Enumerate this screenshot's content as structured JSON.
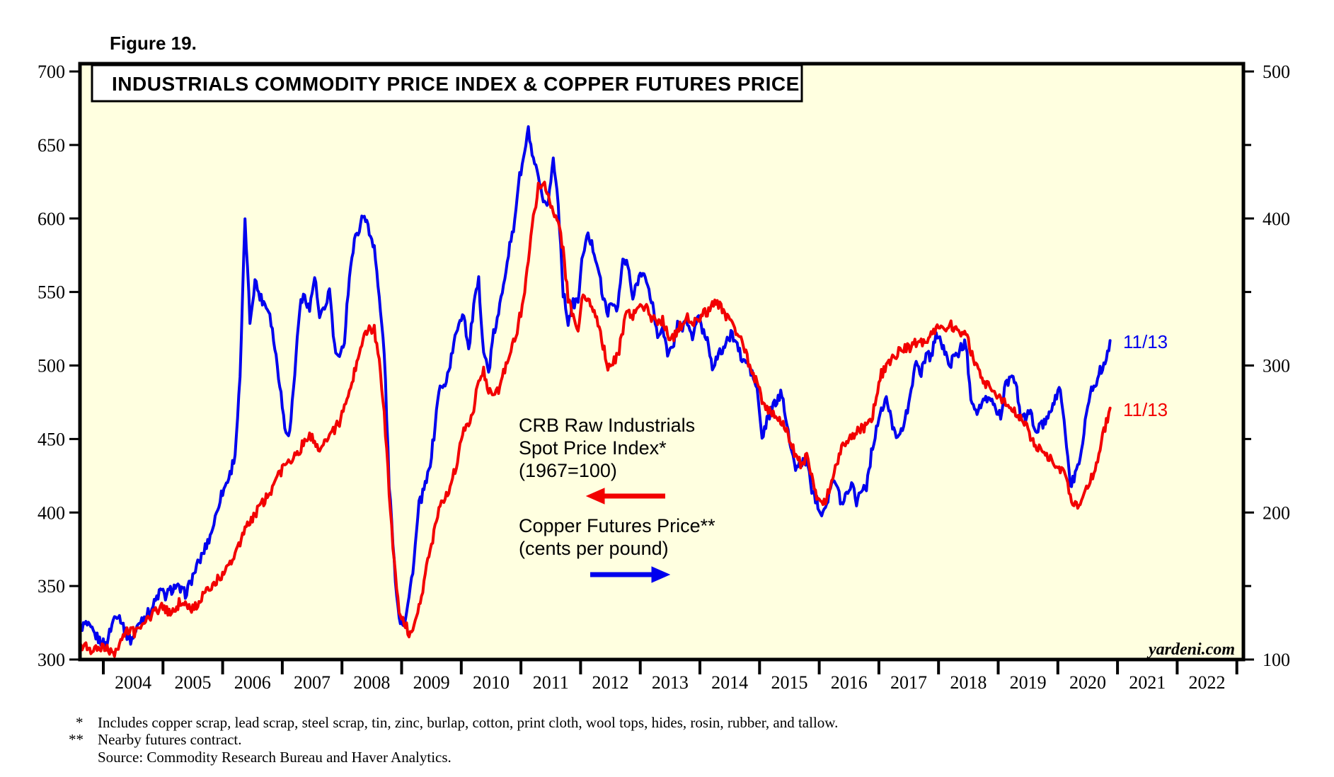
{
  "figure_label": "Figure 19.",
  "title": "INDUSTRIALS COMMODITY PRICE INDEX & COPPER FUTURES PRICE",
  "watermark": "yardeni.com",
  "annotations": {
    "crb_line1": "CRB Raw Industrials",
    "crb_line2": "Spot Price Index*",
    "crb_line3": "(1967=100)",
    "copper_line1": "Copper Futures Price**",
    "copper_line2": "(cents per pound)",
    "crb_end_label": "11/13",
    "copper_end_label": "11/13"
  },
  "footnotes": [
    {
      "marker": "*",
      "text": "Includes copper scrap, lead scrap, steel scrap, tin, zinc, burlap, cotton, print cloth, wool tops, hides, rosin, rubber, and tallow."
    },
    {
      "marker": "**",
      "text": "Nearby futures contract."
    },
    {
      "marker": "",
      "text": "Source: Commodity Research Bureau and Haver Analytics."
    }
  ],
  "colors": {
    "crb": "#f20000",
    "copper": "#0000ee",
    "plot_bg": "#ffffe0",
    "frame": "#000000",
    "text": "#000000"
  },
  "chart_data": {
    "type": "line",
    "title": "INDUSTRIALS COMMODITY PRICE INDEX & COPPER FUTURES PRICE",
    "x_axis_years": [
      "2004",
      "2005",
      "2006",
      "2007",
      "2008",
      "2009",
      "2010",
      "2011",
      "2012",
      "2013",
      "2014",
      "2015",
      "2016",
      "2017",
      "2018",
      "2019",
      "2020",
      "2021",
      "2022"
    ],
    "left_axis": {
      "title": "CRB Raw Industrials Spot Price Index (1967=100)",
      "range": [
        300,
        700
      ],
      "tick_step": 50,
      "ticks": [
        700,
        650,
        600,
        550,
        500,
        450,
        400,
        350,
        300
      ]
    },
    "right_axis": {
      "title": "Copper Futures Price (cents per pound)",
      "range": [
        100,
        500
      ],
      "label_ticks": [
        500,
        400,
        300,
        200,
        100
      ],
      "minor_ticks": [
        450,
        350,
        250,
        150
      ]
    },
    "last_observation": "11/13",
    "series": [
      {
        "name": "CRB Raw Industrials Spot Price Index (1967=100)",
        "axis": "left",
        "color": "#f20000",
        "x_monthly_start": "2004-01",
        "x_monthly_end": "2020-11",
        "values_aug_dec_2003": [
          310,
          309,
          307,
          306,
          307
        ],
        "values_monthly": [
          308,
          304,
          306,
          312,
          318,
          320,
          318,
          322,
          326,
          330,
          333,
          336,
          334,
          331,
          335,
          339,
          337,
          334,
          336,
          340,
          345,
          349,
          352,
          356,
          360,
          366,
          372,
          380,
          388,
          394,
          399,
          404,
          408,
          414,
          420,
          426,
          432,
          436,
          440,
          443,
          449,
          452,
          448,
          444,
          448,
          452,
          456,
          462,
          470,
          481,
          495,
          510,
          520,
          526,
          524,
          505,
          468,
          415,
          365,
          335,
          325,
          318,
          324,
          336,
          352,
          370,
          386,
          400,
          410,
          416,
          426,
          440,
          455,
          460,
          472,
          492,
          496,
          482,
          478,
          484,
          494,
          504,
          515,
          528,
          545,
          572,
          600,
          622,
          626,
          614,
          606,
          600,
          578,
          545,
          532,
          526,
          548,
          544,
          538,
          528,
          514,
          498,
          502,
          506,
          524,
          538,
          534,
          540,
          542,
          537,
          532,
          528,
          530,
          522,
          518,
          524,
          529,
          534,
          529,
          532,
          534,
          537,
          540,
          543,
          538,
          532,
          528,
          522,
          515,
          505,
          497,
          487,
          477,
          470,
          467,
          464,
          461,
          454,
          445,
          438,
          432,
          439,
          424,
          412,
          405,
          410,
          420,
          432,
          444,
          450,
          452,
          455,
          457,
          458,
          462,
          478,
          494,
          500,
          505,
          508,
          510,
          512,
          513,
          515,
          516,
          518,
          520,
          524,
          526,
          527,
          527,
          525,
          523,
          521,
          510,
          500,
          494,
          488,
          486,
          482,
          478,
          476,
          472,
          468,
          464,
          461,
          452,
          446,
          442,
          438,
          437,
          434,
          430,
          424,
          412,
          404,
          408,
          415,
          422,
          430,
          445,
          458,
          471
        ]
      },
      {
        "name": "Copper Futures Price (cents per pound)",
        "axis": "right",
        "color": "#0000ee",
        "x_monthly_start": "2004-01",
        "x_monthly_end": "2020-11",
        "values_aug_dec_2003": [
          122,
          124,
          120,
          116,
          112
        ],
        "values_monthly": [
          110,
          121,
          132,
          128,
          118,
          113,
          119,
          127,
          130,
          133,
          140,
          147,
          143,
          147,
          150,
          147,
          145,
          152,
          161,
          168,
          176,
          184,
          196,
          210,
          218,
          226,
          240,
          290,
          400,
          330,
          358,
          347,
          342,
          336,
          312,
          288,
          258,
          254,
          295,
          340,
          348,
          338,
          361,
          332,
          338,
          352,
          312,
          303,
          318,
          362,
          384,
          394,
          404,
          390,
          382,
          345,
          310,
          220,
          165,
          128,
          125,
          142,
          168,
          205,
          215,
          228,
          252,
          284,
          285,
          297,
          314,
          330,
          336,
          310,
          340,
          357,
          310,
          295,
          321,
          334,
          357,
          377,
          392,
          424,
          440,
          460,
          438,
          428,
          408,
          412,
          440,
          412,
          350,
          330,
          342,
          344,
          378,
          388,
          380,
          368,
          345,
          337,
          342,
          340,
          372,
          368,
          345,
          358,
          366,
          352,
          342,
          318,
          328,
          306,
          312,
          328,
          326,
          330,
          318,
          334,
          324,
          318,
          300,
          305,
          311,
          316,
          322,
          314,
          303,
          302,
          294,
          284,
          250,
          262,
          271,
          276,
          281,
          262,
          238,
          230,
          234,
          236,
          216,
          208,
          200,
          207,
          221,
          218,
          206,
          213,
          221,
          208,
          216,
          218,
          240,
          258,
          268,
          278,
          262,
          254,
          254,
          266,
          286,
          300,
          296,
          308,
          306,
          322,
          316,
          306,
          302,
          306,
          312,
          315,
          280,
          268,
          272,
          276,
          278,
          270,
          266,
          288,
          290,
          289,
          266,
          264,
          268,
          256,
          258,
          262,
          266,
          278,
          285,
          255,
          218,
          225,
          238,
          262,
          281,
          288,
          296,
          302,
          317
        ]
      }
    ]
  }
}
